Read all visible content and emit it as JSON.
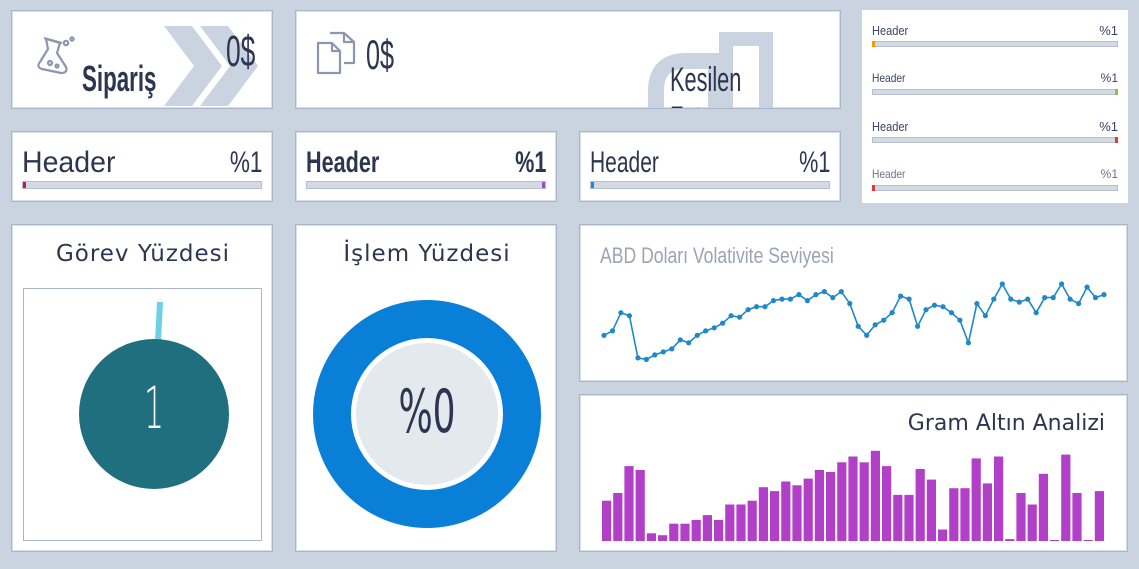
{
  "top": {
    "order_card": {
      "label": "Sipariş",
      "value": "0$",
      "icon": "flask-icon",
      "decor": "double-chevron-icon"
    },
    "invoice_card": {
      "label": "Kesilen Fatura",
      "value": "0$",
      "icon": "documents-icon"
    }
  },
  "header_bars": [
    {
      "label": "Header",
      "pct": "%1",
      "fraction": 0.01,
      "accent": "#c2185b"
    },
    {
      "label": "Header",
      "pct": "%1",
      "fraction": 0.01,
      "accent": "#9c4dcc"
    },
    {
      "label": "Header",
      "pct": "%1",
      "fraction": 0.01,
      "accent": "#1e88e5"
    }
  ],
  "mini_bars": [
    {
      "label": "Header",
      "pct": "%1",
      "fraction": 0.01,
      "accent": "#ff9800"
    },
    {
      "label": "Header",
      "pct": "%1",
      "fraction": 0.01,
      "accent": "#8bc34a"
    },
    {
      "label": "Header",
      "pct": "%1",
      "fraction": 0.01,
      "accent": "#e53935"
    },
    {
      "label": "Header",
      "pct": "%1",
      "fraction": 0.01,
      "accent": "#e53935"
    }
  ],
  "task_gauge": {
    "title": "Görev Yüzdesi",
    "value": "1",
    "color": "#1f6f7f",
    "needle_color": "#6fd0e4"
  },
  "process_donut": {
    "title": "İşlem Yüzdesi",
    "value": "%0",
    "ring_color": "#0a7fd8",
    "inner_color": "#e4e9ee"
  },
  "usd_chart": {
    "title": "ABD Doları Volativite Seviyesi",
    "color": "#1e88c8",
    "chart_data": {
      "type": "line",
      "values": [
        55,
        58,
        70,
        68,
        40,
        39,
        42,
        44,
        46,
        52,
        50,
        55,
        58,
        60,
        63,
        68,
        67,
        72,
        74,
        74,
        78,
        79,
        79,
        82,
        78,
        82,
        84,
        80,
        84,
        76,
        61,
        55,
        62,
        65,
        70,
        81,
        79,
        61,
        72,
        75,
        74,
        70,
        65,
        50,
        76,
        68,
        79,
        89,
        79,
        77,
        79,
        70,
        80,
        80,
        89,
        79,
        76,
        87,
        80,
        82
      ],
      "ylim": [
        30,
        95
      ],
      "grid": false
    },
    "series_values_note": ""
  },
  "gold_chart": {
    "title": "Gram Altın Analizi",
    "color": "#b23fc8",
    "chart_data": {
      "type": "bar",
      "values": [
        42,
        50,
        78,
        74,
        8,
        6,
        18,
        18,
        22,
        27,
        22,
        38,
        38,
        42,
        56,
        52,
        62,
        58,
        65,
        74,
        72,
        82,
        88,
        82,
        94,
        78,
        48,
        48,
        75,
        64,
        12,
        55,
        55,
        86,
        60,
        88,
        2,
        50,
        38,
        70,
        1,
        90,
        50,
        0,
        52
      ],
      "ylim": [
        0,
        100
      ],
      "grid": false
    }
  }
}
